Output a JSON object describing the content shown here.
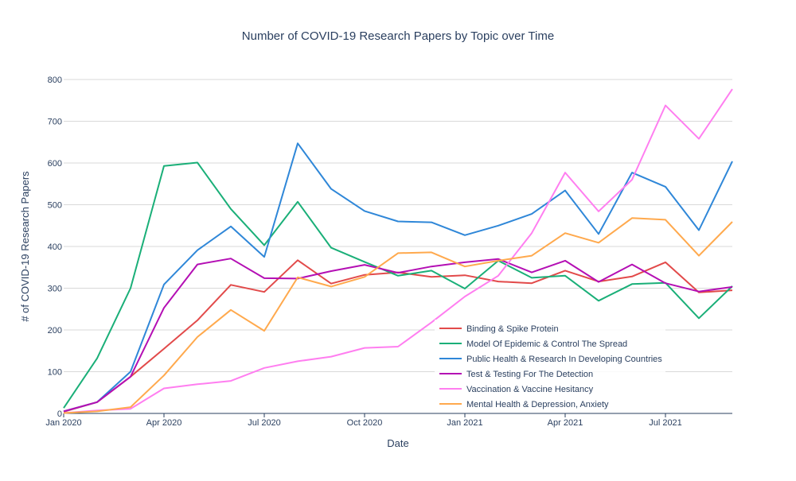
{
  "chart_data": {
    "type": "line",
    "title": "Number of COVID-19 Research Papers by Topic over Time",
    "xlabel": "Date",
    "ylabel": "# of COVID-19 Research Papers",
    "ylim": [
      0,
      800
    ],
    "yticks": [
      0,
      100,
      200,
      300,
      400,
      500,
      600,
      700,
      800
    ],
    "xticks": [
      "Jan 2020",
      "Apr 2020",
      "Jul 2020",
      "Oct 2020",
      "Jan 2021",
      "Apr 2021",
      "Jul 2021"
    ],
    "x": [
      "2020-01",
      "2020-02",
      "2020-03",
      "2020-04",
      "2020-05",
      "2020-06",
      "2020-07",
      "2020-08",
      "2020-09",
      "2020-10",
      "2020-11",
      "2020-12",
      "2021-01",
      "2021-02",
      "2021-03",
      "2021-04",
      "2021-05",
      "2021-06",
      "2021-07",
      "2021-08",
      "2021-09"
    ],
    "grid": true,
    "legend_position": "bottom-right",
    "series": [
      {
        "name": "Binding & Spike Protein",
        "color": "#e24a4a",
        "values": [
          4,
          27,
          88,
          155,
          223,
          308,
          291,
          367,
          311,
          332,
          338,
          327,
          331,
          316,
          312,
          342,
          316,
          328,
          362,
          290,
          295
        ]
      },
      {
        "name": "Model Of Epidemic & Control The Spread",
        "color": "#1aaf78",
        "values": [
          13,
          132,
          300,
          593,
          601,
          490,
          403,
          507,
          397,
          363,
          330,
          342,
          299,
          366,
          325,
          330,
          270,
          310,
          313,
          228,
          305
        ]
      },
      {
        "name": "Public Health & Research In Developing Countries",
        "color": "#2f87d8",
        "values": [
          5,
          27,
          100,
          309,
          391,
          448,
          375,
          647,
          538,
          485,
          460,
          458,
          427,
          450,
          478,
          534,
          430,
          577,
          543,
          439,
          604
        ]
      },
      {
        "name": "Test & Testing For The Detection",
        "color": "#b40fb4",
        "values": [
          5,
          27,
          88,
          253,
          357,
          371,
          324,
          323,
          341,
          356,
          337,
          352,
          362,
          370,
          338,
          366,
          315,
          357,
          312,
          292,
          303
        ]
      },
      {
        "name": "Vaccination & Vaccine Hesitancy",
        "color": "#ff7ef0",
        "values": [
          1,
          7,
          11,
          60,
          70,
          78,
          109,
          125,
          136,
          157,
          160,
          218,
          280,
          330,
          432,
          577,
          484,
          560,
          738,
          658,
          777
        ]
      },
      {
        "name": "Mental Health & Depression, Anxiety",
        "color": "#ffa94d",
        "values": [
          1,
          5,
          15,
          91,
          183,
          248,
          198,
          326,
          304,
          327,
          384,
          386,
          352,
          366,
          378,
          432,
          409,
          468,
          464,
          378,
          459
        ]
      }
    ]
  }
}
